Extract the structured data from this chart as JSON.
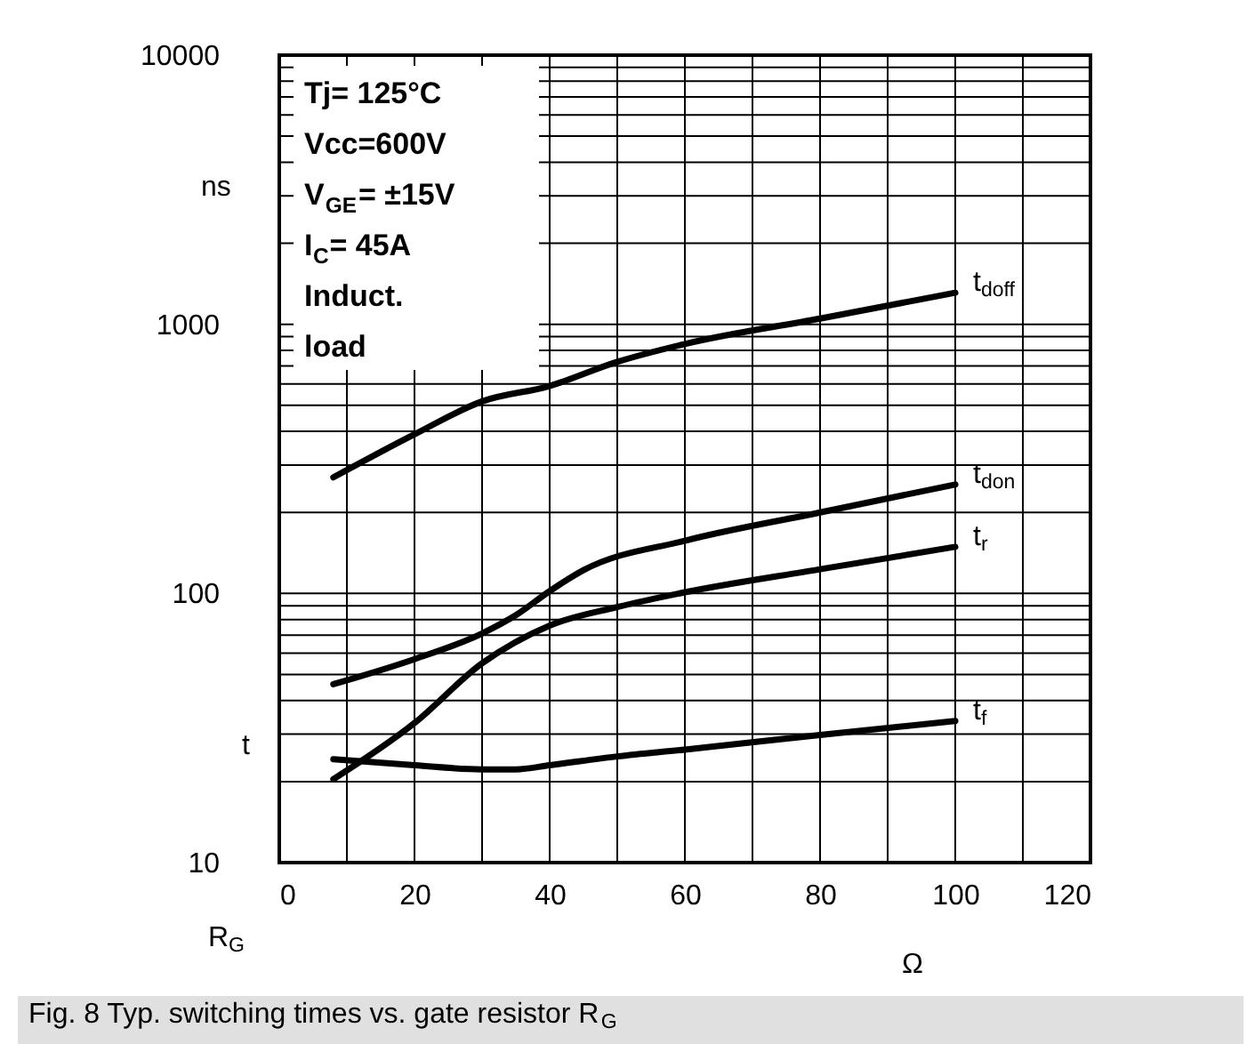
{
  "chart_data": {
    "type": "line",
    "xlabel": "R$_{G}$",
    "ylabel": "t",
    "annotations": [
      "Tj= 125°C",
      "Vcc=600V",
      "V$_{GE}$= ±15V",
      "I$_{C}$= 45A",
      "Induct.",
      "load",
      "ns",
      "Ω",
      "Fig. 8 Typ. switching times vs. gate resistor R$_{G}$"
    ],
    "log": "y",
    "grid": true,
    "marker": "none",
    "line_style": "solid",
    "xlim": [
      0,
      120
    ],
    "ylim": [
      10,
      10000
    ],
    "xticks": [
      0,
      {
        "value": 10,
        "label": null
      },
      20,
      {
        "value": 30,
        "label": null
      },
      40,
      {
        "value": 50,
        "label": null
      },
      60,
      {
        "value": 70,
        "label": null
      },
      80,
      {
        "value": 90,
        "label": null
      },
      100,
      {
        "value": 110,
        "label": null
      },
      120
    ],
    "yticks": [
      10,
      {
        "value": 20,
        "label": null
      },
      {
        "value": 30,
        "label": null
      },
      {
        "value": 40,
        "label": null
      },
      {
        "value": 50,
        "label": null
      },
      {
        "value": 60,
        "label": null
      },
      {
        "value": 70,
        "label": null
      },
      {
        "value": 80,
        "label": null
      },
      {
        "value": 90,
        "label": null
      },
      100,
      {
        "value": 200,
        "label": null
      },
      {
        "value": 300,
        "label": null
      },
      {
        "value": 400,
        "label": null
      },
      {
        "value": 500,
        "label": null
      },
      {
        "value": 600,
        "label": null
      },
      {
        "value": 700,
        "label": null
      },
      {
        "value": 800,
        "label": null
      },
      {
        "value": 900,
        "label": null
      },
      1000,
      {
        "value": 2000,
        "label": null
      },
      {
        "value": 3000,
        "label": null
      },
      {
        "value": 4000,
        "label": null
      },
      {
        "value": 5000,
        "label": null
      },
      {
        "value": 6000,
        "label": null
      },
      {
        "value": 7000,
        "label": null
      },
      {
        "value": 8000,
        "label": null
      },
      {
        "value": 9000,
        "label": null
      },
      10000
    ],
    "x": [
      8,
      20,
      30,
      40,
      50,
      60,
      80,
      100
    ],
    "series": [
      {
        "name": "t$_{doff}$",
        "color": "#000000",
        "values": [
          270,
          390,
          517,
          590,
          725,
          845,
          1050,
          1310
        ]
      },
      {
        "name": "t$_{don}$",
        "color": "#000000",
        "x": [
          8,
          20,
          30,
          35,
          40,
          45,
          60,
          80,
          100
        ],
        "values": [
          46,
          57,
          71,
          83,
          102,
          122,
          157,
          200,
          254
        ]
      },
      {
        "name": "t$_{r}$",
        "color": "#000000",
        "values": [
          20.4,
          33,
          55,
          76,
          89,
          101,
          123,
          149
        ]
      },
      {
        "name": "t$_{f}$",
        "color": "#000000",
        "x": [
          8,
          20,
          30,
          35,
          40,
          50,
          60,
          80,
          100
        ],
        "values": [
          24.2,
          23,
          22.2,
          22.2,
          23,
          24.8,
          26.3,
          29.8,
          33.6
        ]
      }
    ]
  }
}
